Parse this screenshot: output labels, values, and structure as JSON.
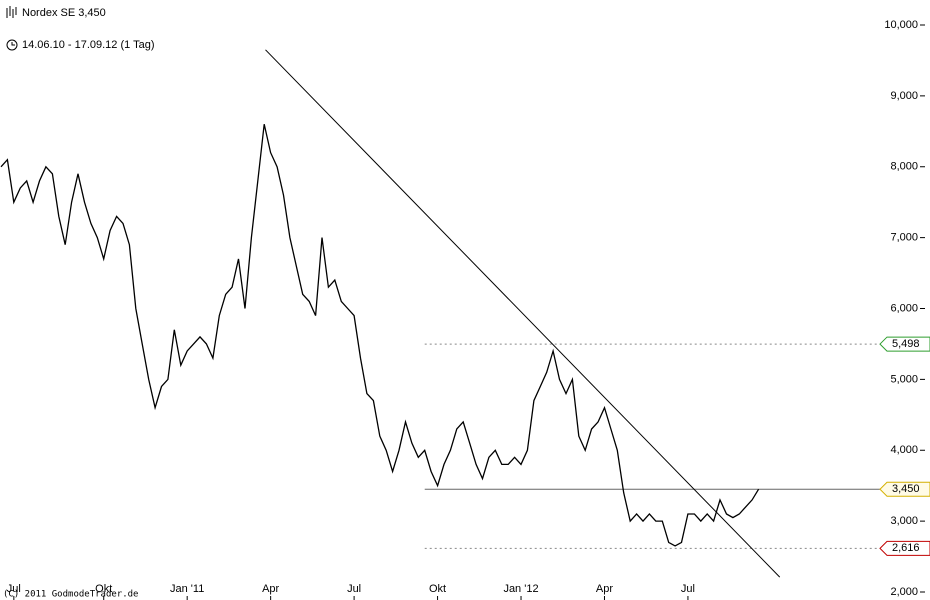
{
  "chart_data": {
    "type": "line",
    "title": "Nordex SE 3,450",
    "subtitle": "14.06.10 - 17.09.12 (1 Tag)",
    "footer": "(C) 2011 GodmodeTrader.de",
    "color": "#000000",
    "categories": [
      null,
      null,
      "Jul",
      null,
      null,
      null,
      null,
      null,
      null,
      null,
      null,
      null,
      null,
      null,
      null,
      null,
      "Okt",
      null,
      null,
      null,
      null,
      null,
      null,
      null,
      null,
      null,
      null,
      null,
      null,
      "Jan '11",
      null,
      null,
      null,
      null,
      null,
      null,
      null,
      null,
      null,
      null,
      null,
      null,
      "Apr",
      null,
      null,
      null,
      null,
      null,
      null,
      null,
      null,
      null,
      null,
      null,
      null,
      "Jul",
      null,
      null,
      null,
      null,
      null,
      null,
      null,
      null,
      null,
      null,
      null,
      null,
      "Okt",
      null,
      null,
      null,
      null,
      null,
      null,
      null,
      null,
      null,
      null,
      null,
      null,
      "Jan '12",
      null,
      null,
      null,
      null,
      null,
      null,
      null,
      null,
      null,
      null,
      null,
      null,
      "Apr",
      null,
      null,
      null,
      null,
      null,
      null,
      null,
      null,
      null,
      null,
      null,
      null,
      "Jul",
      null,
      null,
      null,
      null,
      null,
      null,
      null,
      null,
      null,
      null,
      null
    ],
    "values": [
      8000,
      8100,
      7500,
      7700,
      7800,
      7500,
      7800,
      8000,
      7900,
      7300,
      6900,
      7500,
      7900,
      7500,
      7200,
      7000,
      6700,
      7100,
      7300,
      7200,
      6900,
      6000,
      5500,
      5000,
      4600,
      4900,
      5000,
      5700,
      5200,
      5400,
      5500,
      5600,
      5500,
      5300,
      5900,
      6200,
      6300,
      6700,
      6000,
      7000,
      7800,
      8600,
      8200,
      8000,
      7600,
      7000,
      6600,
      6200,
      6100,
      5900,
      7000,
      6300,
      6400,
      6100,
      6000,
      5900,
      5300,
      4800,
      4700,
      4200,
      4000,
      3700,
      4000,
      4400,
      4100,
      3900,
      4000,
      3700,
      3500,
      3800,
      4000,
      4300,
      4400,
      4100,
      3800,
      3600,
      3900,
      4000,
      3800,
      3800,
      3900,
      3800,
      4000,
      4700,
      4900,
      5100,
      5400,
      5000,
      4800,
      5000,
      4200,
      4000,
      4300,
      4400,
      4600,
      4300,
      4000,
      3400,
      3000,
      3100,
      3000,
      3100,
      3000,
      3000,
      2700,
      2650,
      2700,
      3100,
      3100,
      3000,
      3100,
      3000,
      3300,
      3100,
      3050,
      3100,
      3200,
      3300,
      3450
    ],
    "ylim": [
      2000,
      10000
    ],
    "yticks": [
      {
        "value": 2000,
        "label": "2,000"
      },
      {
        "value": 3000,
        "label": "3,000"
      },
      {
        "value": 4000,
        "label": "4,000"
      },
      {
        "value": 5000,
        "label": "5,000"
      },
      {
        "value": 6000,
        "label": "6,000"
      },
      {
        "value": 7000,
        "label": "7,000"
      },
      {
        "value": 8000,
        "label": "8,000"
      },
      {
        "value": 9000,
        "label": "9,000"
      },
      {
        "value": 10000,
        "label": "10,000"
      }
    ],
    "levels": [
      {
        "value": 5498,
        "label": "5,498",
        "color": "#2e9e2e",
        "fill": "#ffffff",
        "dashed": true,
        "start": 66
      },
      {
        "value": 3450,
        "label": "3,450",
        "color": "#d4b000",
        "fill": "#fffbe6",
        "dashed": false,
        "start": 66
      },
      {
        "value": 2616,
        "label": "2,616",
        "color": "#c00000",
        "fill": "#ffffff",
        "dashed": true,
        "start": 66
      }
    ],
    "trend_line": {
      "x": [
        41.2,
        121.3
      ],
      "values": [
        9650,
        2210
      ]
    }
  }
}
